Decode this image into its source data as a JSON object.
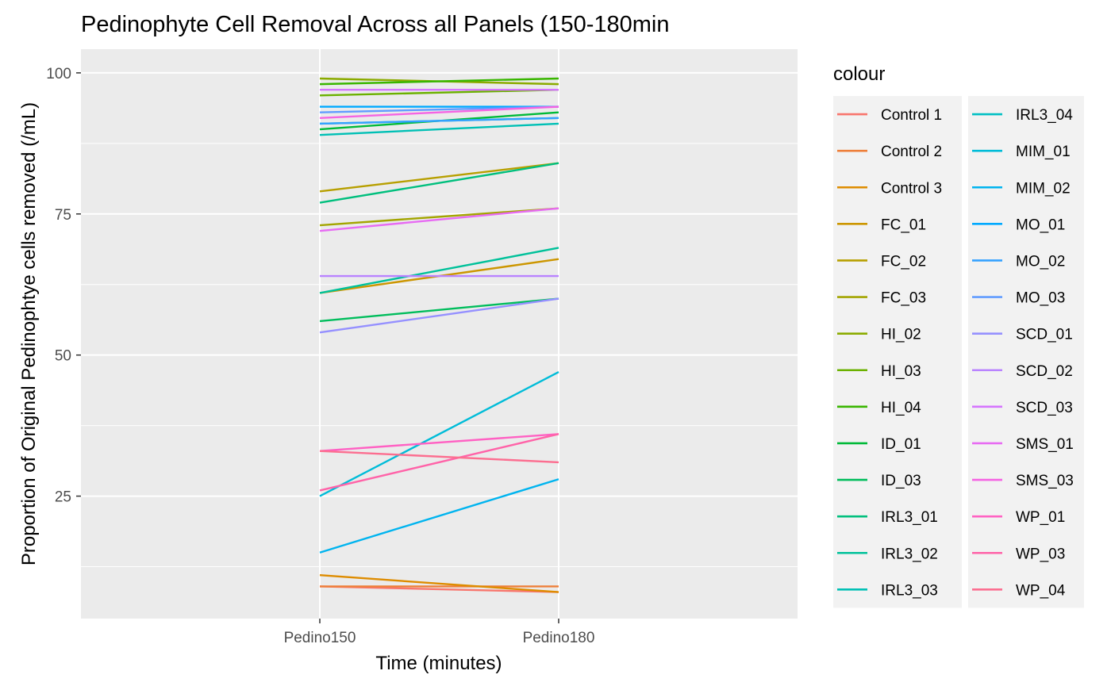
{
  "chart_data": {
    "type": "line",
    "title": "Pedinophyte Cell Removal Across all Panels (150-180min",
    "xlabel": "Time (minutes)",
    "ylabel": "Proportion of Original Pedinophtye cells removed (/mL)",
    "categories": [
      "Pedino150",
      "Pedino180"
    ],
    "ylim": [
      3.3,
      104.2
    ],
    "yticks": [
      25,
      50,
      75,
      100
    ],
    "grid": true,
    "legend_title": "colour",
    "legend_position": "right",
    "series": [
      {
        "name": "Control 1",
        "color": "#F8766D",
        "values": [
          9,
          8
        ]
      },
      {
        "name": "Control 2",
        "color": "#EE7F3A",
        "values": [
          9,
          9
        ]
      },
      {
        "name": "Control 3",
        "color": "#DE8C00",
        "values": [
          11,
          8
        ]
      },
      {
        "name": "FC_01",
        "color": "#CC9600",
        "values": [
          61,
          67
        ]
      },
      {
        "name": "FC_02",
        "color": "#B79F00",
        "values": [
          79,
          84
        ]
      },
      {
        "name": "FC_03",
        "color": "#A3A500",
        "values": [
          73,
          76
        ]
      },
      {
        "name": "HI_02",
        "color": "#8BAB00",
        "values": [
          99,
          98
        ]
      },
      {
        "name": "HI_03",
        "color": "#6BB100",
        "values": [
          96,
          97
        ]
      },
      {
        "name": "HI_04",
        "color": "#39B600",
        "values": [
          98,
          99
        ]
      },
      {
        "name": "ID_01",
        "color": "#00BA38",
        "values": [
          90,
          93
        ]
      },
      {
        "name": "ID_03",
        "color": "#00BD5C",
        "values": [
          56,
          60
        ]
      },
      {
        "name": "IRL3_01",
        "color": "#00BF7D",
        "values": [
          77,
          84
        ]
      },
      {
        "name": "IRL3_02",
        "color": "#00C19A",
        "values": [
          61,
          69
        ]
      },
      {
        "name": "IRL3_03",
        "color": "#00C0B5",
        "values": [
          89,
          91
        ]
      },
      {
        "name": "IRL3_04",
        "color": "#00BFC4",
        "values": [
          91,
          92
        ]
      },
      {
        "name": "MIM_01",
        "color": "#00BCD8",
        "values": [
          25,
          47
        ]
      },
      {
        "name": "MIM_02",
        "color": "#00B4EF",
        "values": [
          15,
          28
        ]
      },
      {
        "name": "MO_01",
        "color": "#00A9FF",
        "values": [
          94,
          94
        ]
      },
      {
        "name": "MO_02",
        "color": "#35A2FF",
        "values": [
          91,
          92
        ]
      },
      {
        "name": "MO_03",
        "color": "#619CFF",
        "values": [
          93,
          94
        ]
      },
      {
        "name": "SCD_01",
        "color": "#9590FF",
        "values": [
          54,
          60
        ]
      },
      {
        "name": "SCD_02",
        "color": "#B983FF",
        "values": [
          64,
          64
        ]
      },
      {
        "name": "SCD_03",
        "color": "#D575FE",
        "values": [
          97,
          97
        ]
      },
      {
        "name": "SMS_01",
        "color": "#E76BF3",
        "values": [
          72,
          76
        ]
      },
      {
        "name": "SMS_03",
        "color": "#F564E3",
        "values": [
          92,
          94
        ]
      },
      {
        "name": "WP_01",
        "color": "#FF61C3",
        "values": [
          33,
          36
        ]
      },
      {
        "name": "WP_03",
        "color": "#FF63A8",
        "values": [
          26,
          36
        ]
      },
      {
        "name": "WP_04",
        "color": "#FC6E90",
        "values": [
          33,
          31
        ]
      }
    ]
  }
}
